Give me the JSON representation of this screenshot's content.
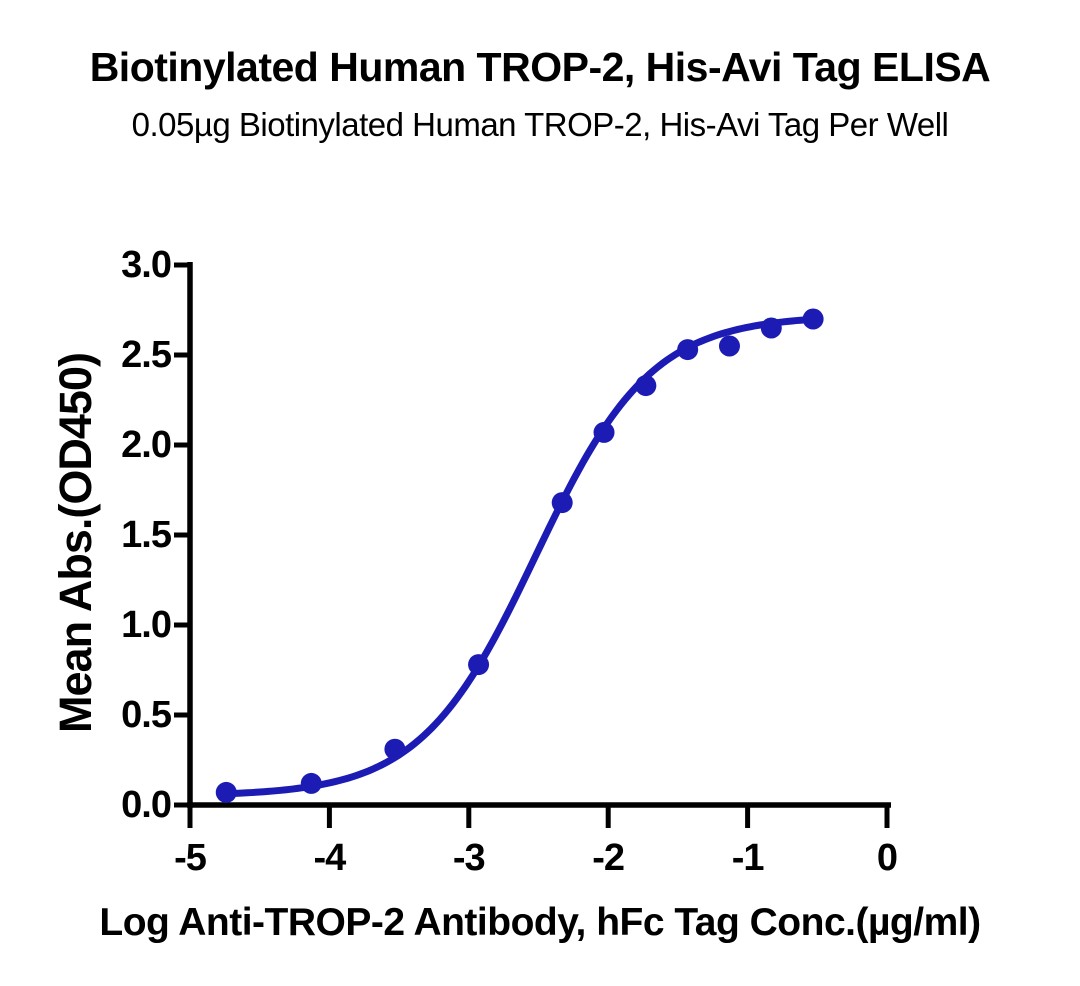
{
  "page": {
    "title": "Biotinylated Human TROP-2, His-Avi Tag ELISA",
    "subtitle": "0.05µg Biotinylated Human TROP-2, His-Avi Tag Per Well"
  },
  "chart_data": {
    "type": "scatter",
    "title": "Biotinylated Human TROP-2, His-Avi Tag ELISA",
    "subtitle": "0.05µg Biotinylated Human TROP-2, His-Avi Tag Per Well",
    "xlabel": "Log Anti-TROP-2 Antibody, hFc Tag Conc.(µg/ml)",
    "ylabel": "Mean Abs.(OD450)",
    "xlim": [
      -5,
      0
    ],
    "ylim": [
      0.0,
      3.0
    ],
    "x_tick_values": [
      -5,
      -4,
      -3,
      -2,
      -1,
      0
    ],
    "x_tick_labels": [
      "-5",
      "-4",
      "-3",
      "-2",
      "-1",
      "0"
    ],
    "y_tick_values": [
      0.0,
      0.5,
      1.0,
      1.5,
      2.0,
      2.5,
      3.0
    ],
    "y_tick_labels": [
      "0.0",
      "0.5",
      "1.0",
      "1.5",
      "2.0",
      "2.5",
      "3.0"
    ],
    "grid": false,
    "legend": "none",
    "axis_color": "#000000",
    "background_color": "#ffffff",
    "series": [
      {
        "marker_color": "#1c1cb4",
        "line_color": "#1c1cb4",
        "marker": "circle",
        "points": [
          {
            "x": -4.74,
            "y": 0.07
          },
          {
            "x": -4.13,
            "y": 0.12
          },
          {
            "x": -3.53,
            "y": 0.31
          },
          {
            "x": -2.93,
            "y": 0.78
          },
          {
            "x": -2.33,
            "y": 1.68
          },
          {
            "x": -2.03,
            "y": 2.07
          },
          {
            "x": -1.73,
            "y": 2.33
          },
          {
            "x": -1.43,
            "y": 2.53
          },
          {
            "x": -1.13,
            "y": 2.55
          },
          {
            "x": -0.83,
            "y": 2.65
          },
          {
            "x": -0.53,
            "y": 2.7
          }
        ],
        "fit_curve": {
          "model": "4PL",
          "bottom": 0.05,
          "top": 2.72,
          "logEC50": -2.52,
          "hill": 1.05,
          "x_start": -4.74,
          "x_end": -0.53
        }
      }
    ]
  }
}
